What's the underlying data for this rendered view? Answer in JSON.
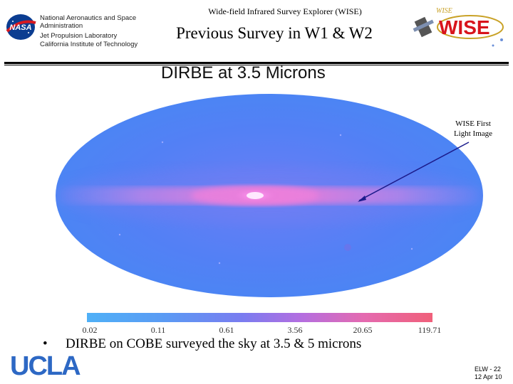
{
  "header": {
    "org_lines": [
      "National Aeronautics and Space",
      "Administration",
      "Jet Propulsion Laboratory",
      "California Institute of Technology"
    ],
    "mission": "Wide-field Infrared Survey Explorer (WISE)",
    "title": "Previous Survey in W1 & W2",
    "nasa_logo_text": "NASA",
    "wise_logo_text": "WISE",
    "wise_logo_sub": "WISE"
  },
  "figure": {
    "title": "DIRBE at 3.5 Microns",
    "annotation_lines": [
      "WISE First",
      "Light Image"
    ],
    "colorbar_ticks": [
      "0.02",
      "0.11",
      "0.61",
      "3.56",
      "20.65",
      "119.71"
    ]
  },
  "bullets": [
    {
      "mark": "•",
      "text": "DIRBE on COBE surveyed the sky at 3.5 & 5 microns"
    }
  ],
  "footer": {
    "ucla_logo_text": "UCLA",
    "event": "ELW - 22",
    "date": "12 Apr 10"
  },
  "colors": {
    "map_base": "#4f7cf5",
    "galactic_plane": "#e77bd8",
    "arrow": "#1c1c8c",
    "ucla_blue": "#2d68c4",
    "wise_red": "#d8141c"
  }
}
